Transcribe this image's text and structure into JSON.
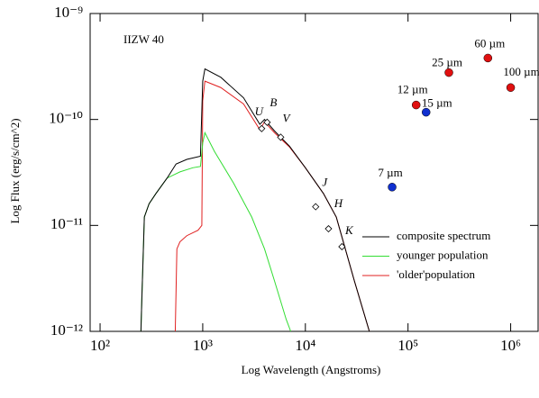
{
  "chart_data": {
    "type": "line",
    "annotation": "IIZW 40",
    "x_label": "Log Wavelength (Angstroms)",
    "y_label": "Log Flux (erg/s/cm^2)",
    "xscale": "log",
    "yscale": "log",
    "xlim": [
      80,
      1850000
    ],
    "ylim": [
      1e-12,
      1e-09
    ],
    "xticks": [
      {
        "value": 100,
        "label": "10²"
      },
      {
        "value": 1000,
        "label": "10³"
      },
      {
        "value": 10000,
        "label": "10⁴"
      },
      {
        "value": 100000,
        "label": "10⁵"
      },
      {
        "value": 1000000,
        "label": "10⁶"
      }
    ],
    "yticks": [
      {
        "value": 1e-12,
        "label": "10⁻¹²"
      },
      {
        "value": 1e-11,
        "label": "10⁻¹¹"
      },
      {
        "value": 1e-10,
        "label": "10⁻¹⁰"
      },
      {
        "value": 1e-09,
        "label": "10⁻⁹"
      }
    ],
    "series": [
      {
        "name": "composite spectrum",
        "color": "#000000",
        "x": [
          250,
          255,
          270,
          300,
          350,
          450,
          550,
          700,
          950,
          1000,
          1050,
          1500,
          2500,
          3600,
          4000,
          5000,
          7000,
          10000,
          15000,
          20000,
          30000,
          42000
        ],
        "values": [
          1e-12,
          2e-12,
          1.2e-11,
          1.6e-11,
          2e-11,
          2.8e-11,
          3.8e-11,
          4.2e-11,
          4.5e-11,
          2.3e-10,
          3e-10,
          2.5e-10,
          1.6e-10,
          9e-11,
          1e-10,
          7.8e-11,
          5.6e-11,
          3.5e-11,
          2e-11,
          1.2e-11,
          3e-12,
          1e-12
        ]
      },
      {
        "name": "younger population",
        "color": "#33dd33",
        "x": [
          250,
          255,
          270,
          300,
          350,
          450,
          600,
          800,
          950,
          1000,
          1050,
          1300,
          2000,
          3000,
          4000,
          5000,
          6500,
          7200
        ],
        "values": [
          1e-12,
          2e-12,
          1.2e-11,
          1.6e-11,
          2e-11,
          2.8e-11,
          3.2e-11,
          3.5e-11,
          3.6e-11,
          6e-11,
          7.5e-11,
          5e-11,
          2.5e-11,
          1.2e-11,
          6e-12,
          3e-12,
          1.3e-12,
          1e-12
        ]
      },
      {
        "name": "'older'population",
        "color": "#e02020",
        "x": [
          540,
          560,
          600,
          700,
          900,
          980,
          1000,
          1050,
          1500,
          2500,
          3600,
          4000,
          5000,
          7000,
          10000,
          15000,
          20000,
          30000,
          42000
        ],
        "values": [
          1e-12,
          6e-12,
          7e-12,
          8e-12,
          9e-12,
          1e-11,
          1.5e-10,
          2.3e-10,
          2e-10,
          1.4e-10,
          8e-11,
          9.5e-11,
          7.5e-11,
          5.5e-11,
          3.5e-11,
          2e-11,
          1.2e-11,
          3e-12,
          1e-12
        ]
      }
    ],
    "photometry": {
      "labels": [
        "U",
        "B",
        "V",
        "J",
        "H",
        "K"
      ],
      "x": [
        3750,
        4240,
        5750,
        12600,
        16800,
        22700
      ],
      "values": [
        8.2e-11,
        9.4e-11,
        6.8e-11,
        1.5e-11,
        9.3e-12,
        6.3e-12
      ]
    },
    "ir_points": {
      "labels": [
        "7 µm",
        "12 µm",
        "15 µm",
        "25 µm",
        "60 µm",
        "100 µm"
      ],
      "x": [
        70000,
        120000,
        150000,
        250000,
        600000,
        1000000
      ],
      "values": [
        2.3e-11,
        1.37e-10,
        1.17e-10,
        2.77e-10,
        3.8e-10,
        2e-10
      ],
      "colors": [
        "#1030d0",
        "#e01010",
        "#1030d0",
        "#e01010",
        "#e01010",
        "#e01010"
      ]
    }
  }
}
